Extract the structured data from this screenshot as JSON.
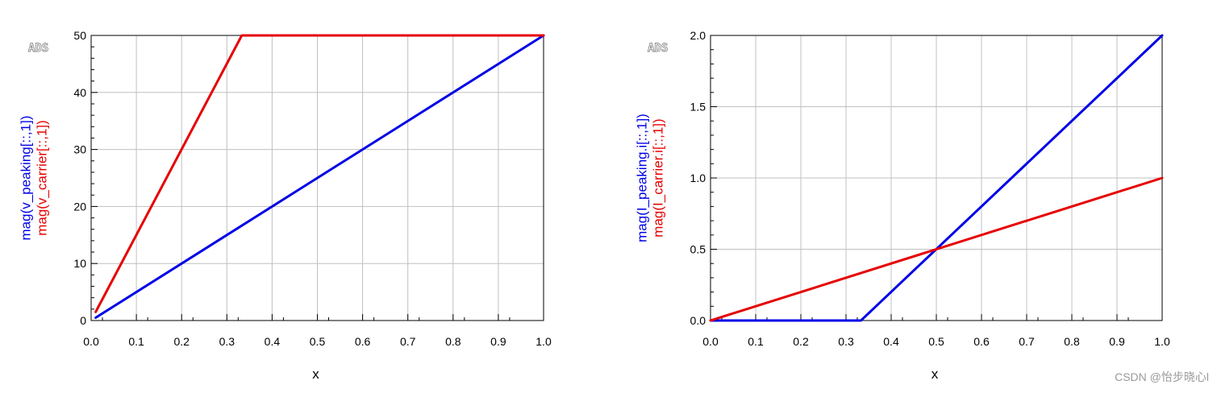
{
  "watermark": "CSDN @怡步晓心l",
  "chart_data": [
    {
      "type": "line",
      "badge": "ADS",
      "xlabel": "x",
      "ylabels": [
        {
          "text": "mag(v_peaking[::,1])",
          "color": "#0000e6"
        },
        {
          "text": "mag(v_carrier[::,1])",
          "color": "#e60000"
        }
      ],
      "xlim": [
        0,
        1.0
      ],
      "ylim": [
        0,
        50
      ],
      "xticks": [
        "0.0",
        "0.1",
        "0.2",
        "0.3",
        "0.4",
        "0.5",
        "0.6",
        "0.7",
        "0.8",
        "0.9",
        "1.0"
      ],
      "yticks": [
        "0",
        "10",
        "20",
        "30",
        "40",
        "50"
      ],
      "grid": true,
      "series": [
        {
          "color": "#0000e6",
          "x": [
            0.01,
            1.0
          ],
          "y": [
            0.5,
            50
          ]
        },
        {
          "color": "#e60000",
          "x": [
            0.01,
            0.333,
            1.0
          ],
          "y": [
            1.5,
            50,
            50
          ]
        }
      ]
    },
    {
      "type": "line",
      "badge": "ADS",
      "xlabel": "x",
      "ylabels": [
        {
          "text": "mag(I_peaking.i[::,1])",
          "color": "#0000e6"
        },
        {
          "text": "mag(I_carrier.i[::,1])",
          "color": "#e60000"
        }
      ],
      "xlim": [
        0,
        1.0
      ],
      "ylim": [
        0,
        2.0
      ],
      "xticks": [
        "0.0",
        "0.1",
        "0.2",
        "0.3",
        "0.4",
        "0.5",
        "0.6",
        "0.7",
        "0.8",
        "0.9",
        "1.0"
      ],
      "yticks": [
        "0.0",
        "0.5",
        "1.0",
        "1.5",
        "2.0"
      ],
      "grid": true,
      "series": [
        {
          "color": "#0000e6",
          "x": [
            0.0,
            0.333,
            1.0
          ],
          "y": [
            0.0,
            0.0,
            2.0
          ]
        },
        {
          "color": "#e60000",
          "x": [
            0.0,
            1.0
          ],
          "y": [
            0.0,
            1.0
          ]
        }
      ]
    }
  ]
}
